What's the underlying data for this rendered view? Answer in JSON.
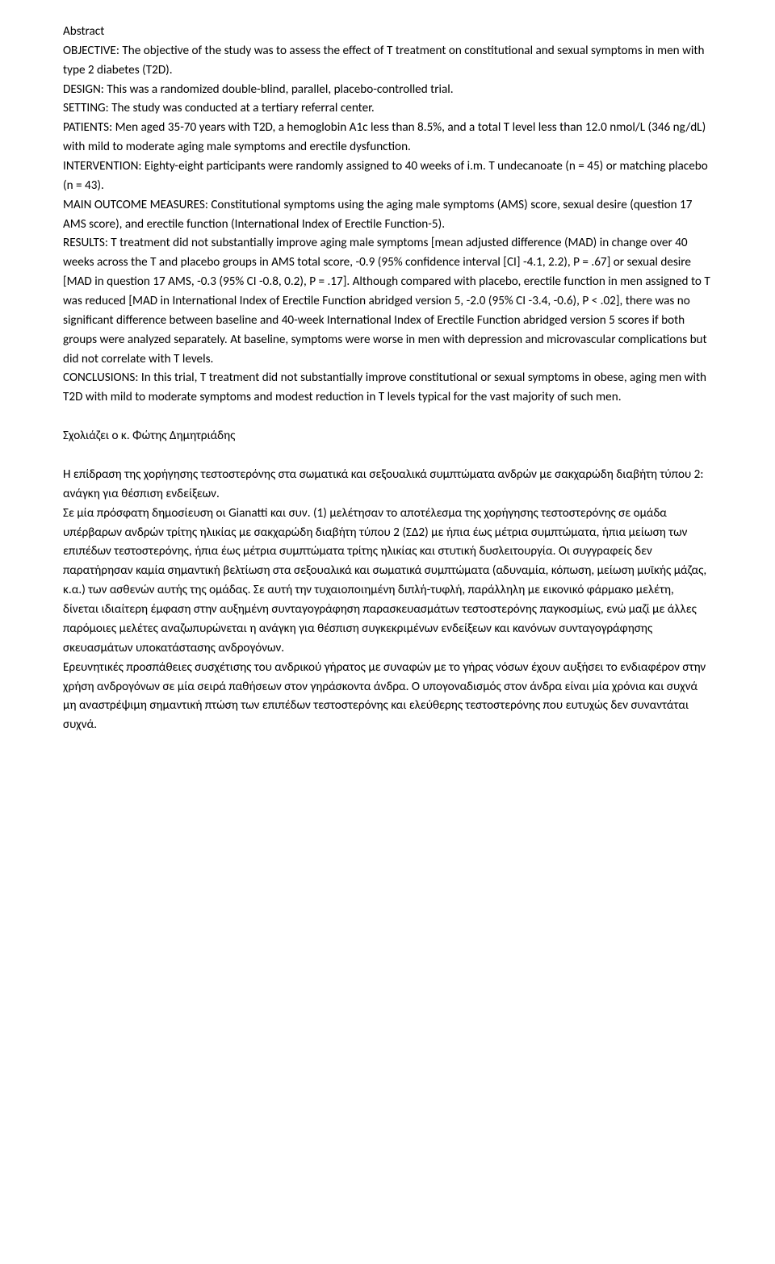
{
  "abstract_heading": "Abstract",
  "objective": "OBJECTIVE: The objective of the study was to assess the effect of T treatment on constitutional and sexual symptoms in men with type 2 diabetes (T2D).",
  "design": "DESIGN: This was a randomized double-blind, parallel, placebo-controlled trial.",
  "setting": "SETTING: The study was conducted at a tertiary referral center.",
  "patients": "PATIENTS: Men aged 35-70 years with T2D, a hemoglobin A1c less than 8.5%, and a total T level less than 12.0 nmol/L (346 ng/dL) with mild to moderate aging male symptoms and erectile dysfunction.",
  "intervention": "INTERVENTION: Eighty-eight participants were randomly assigned to 40 weeks of i.m. T undecanoate (n = 45) or matching placebo (n = 43).",
  "main_outcome": "MAIN OUTCOME MEASURES: Constitutional symptoms using the aging male symptoms (AMS) score, sexual desire (question 17 AMS score), and erectile function (International Index of Erectile Function-5).",
  "results": "RESULTS: T treatment did not substantially improve aging male symptoms [mean adjusted difference (MAD) in change over 40 weeks across the T and placebo groups in AMS total score, -0.9 (95% confidence interval [CI] -4.1, 2.2), P = .67] or sexual desire [MAD in question 17 AMS, -0.3 (95% CI -0.8, 0.2), P = .17]. Although compared with placebo, erectile function in men assigned to T was reduced [MAD in International Index of Erectile Function abridged version 5, -2.0 (95% CI -3.4, -0.6), P < .02], there was no significant difference between baseline and 40-week International Index of Erectile Function abridged version 5 scores if both groups were analyzed separately. At baseline, symptoms were worse in men with depression and microvascular complications but did not correlate with T levels.",
  "conclusions": "CONCLUSIONS: In this trial, T treatment did not substantially improve constitutional or sexual symptoms in obese, aging men with T2D with mild to moderate symptoms and modest reduction in T levels typical for the vast majority of such men.",
  "commentary_author": "Σχολιάζει ο κ. Φώτης Δημητριάδης",
  "greek_title": "Η επίδραση της χορήγησης τεστοστερόνης στα σωματικά και σεξουαλικά συμπτώματα ανδρών με σακχαρώδη διαβήτη τύπου 2: ανάγκη για θέσπιση ενδείξεων.",
  "greek_para1": "Σε μία πρόσφατη δημοσίευση οι Gianatti και συν. (1) μελέτησαν το αποτέλεσμα της χορήγησης τεστοστερόνης σε ομάδα υπέρβαρων ανδρών τρίτης ηλικίας με σακχαρώδη διαβήτη τύπου 2 (ΣΔ2) με ήπια έως μέτρια συμπτώματα, ήπια μείωση των επιπέδων τεστοστερόνης, ήπια έως μέτρια συμπτώματα τρίτης ηλικίας και στυτική δυσλειτουργία. Οι συγγραφείς δεν παρατήρησαν καμία σημαντική βελτίωση στα σεξουαλικά και σωματικά συμπτώματα (αδυναμία, κόπωση, μείωση μυϊκής μάζας, κ.α.) των ασθενών αυτής της ομάδας. Σε αυτή την τυχαιοποιημένη διπλή-τυφλή, παράλληλη με εικονικό φάρμακο μελέτη, δίνεται ιδιαίτερη έμφαση στην αυξημένη συνταγογράφηση παρασκευασμάτων τεστοστερόνης παγκοσμίως, ενώ μαζί με άλλες παρόμοιες μελέτες αναζωπυρώνεται η ανάγκη για θέσπιση συγκεκριμένων ενδείξεων και κανόνων συνταγογράφησης σκευασμάτων υποκατάστασης ανδρογόνων.",
  "greek_para2": "Ερευνητικές προσπάθειες συσχέτισης του ανδρικού γήρατος με συναφών με το γήρας νόσων έχουν αυξήσει το ενδιαφέρον στην χρήση ανδρογόνων σε μία σειρά παθήσεων στον γηράσκοντα άνδρα. Ο υπογοναδισμός στον άνδρα είναι μία χρόνια και συχνά μη αναστρέψιμη σημαντική πτώση των επιπέδων τεστοστερόνης και ελεύθερης τεστοστερόνης που ευτυχώς δεν συναντάται συχνά."
}
